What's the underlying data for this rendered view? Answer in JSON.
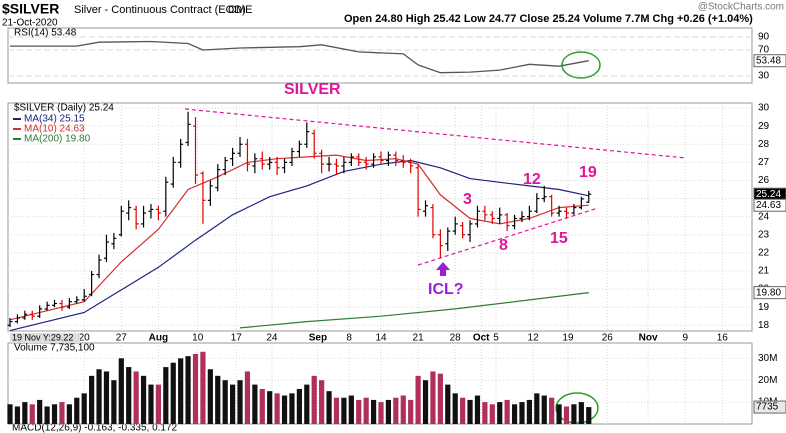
{
  "header": {
    "symbol": "$SILVER",
    "name": "Silver - Continuous Contract (EOD)",
    "exchange": "CME",
    "date": "21-Oct-2020",
    "quote": "Open 24.80  High 25.42  Low 24.77  Close 25.24  Volume 7.7M  Chg +0.26 (+1.04%)",
    "brand": "@StockCharts.com",
    "cursor": "19 Nov Y:29.22",
    "macd": "MACD(12,26,9) -0.163, -0.335, 0.172"
  },
  "chart_data": [
    {
      "type": "line",
      "title": "RSI(14) 53.48",
      "color": "#555555",
      "x": [
        0,
        9,
        12,
        19,
        24,
        26,
        31,
        39,
        42,
        47,
        53,
        55,
        58,
        62,
        66,
        70,
        74,
        78
      ],
      "values": [
        76,
        76,
        82,
        83,
        80,
        70,
        73,
        75,
        78,
        67,
        64,
        47,
        35,
        36,
        39,
        48,
        45,
        53.48
      ],
      "xlim": [
        0,
        100
      ],
      "ylim": [
        19.2,
        103.8
      ],
      "yticks": [
        30,
        70,
        90
      ],
      "value_tag": {
        "value": 53.48,
        "label": "53.48"
      }
    },
    {
      "type": "ohlc",
      "title": "$SILVER (Daily) 25.24",
      "up_color": "#000000",
      "down_color": "#e00000",
      "x": [
        0,
        1,
        2,
        3,
        4,
        5,
        6,
        7,
        8,
        9,
        10,
        11,
        12,
        13,
        14,
        15,
        16,
        17,
        18,
        19,
        20,
        21,
        22,
        23,
        24,
        25,
        26,
        27,
        28,
        29,
        30,
        31,
        32,
        33,
        34,
        35,
        36,
        37,
        38,
        39,
        40,
        41,
        42,
        43,
        44,
        45,
        46,
        47,
        48,
        49,
        50,
        51,
        52,
        53,
        54,
        55,
        56,
        57,
        58,
        59,
        60,
        61,
        62,
        63,
        64,
        65,
        66,
        67,
        68,
        69,
        70,
        71,
        72,
        73,
        74,
        75,
        76,
        77,
        78
      ],
      "open": [
        18.0,
        18.2,
        18.4,
        18.6,
        18.5,
        18.9,
        19.1,
        19.2,
        19.0,
        19.3,
        19.4,
        19.7,
        20.8,
        21.7,
        22.5,
        23.0,
        24.2,
        24.4,
        23.6,
        24.3,
        24.4,
        24.3,
        25.8,
        27.0,
        28.1,
        29.0,
        26.4,
        24.9,
        25.6,
        26.6,
        27.2,
        27.5,
        28.0,
        26.8,
        27.2,
        26.9,
        27.0,
        26.7,
        27.0,
        27.6,
        28.0,
        28.6,
        27.5,
        26.9,
        26.9,
        26.8,
        27.0,
        27.3,
        27.0,
        26.9,
        27.3,
        27.1,
        27.4,
        27.1,
        27.0,
        26.7,
        24.3,
        24.5,
        23.0,
        22.5,
        23.2,
        23.5,
        23.0,
        23.6,
        24.3,
        24.1,
        23.9,
        24.1,
        23.5,
        23.9,
        24.0,
        24.3,
        25.0,
        25.1,
        24.2,
        24.3,
        24.2,
        24.5,
        24.8
      ],
      "high": [
        18.4,
        18.6,
        18.8,
        18.8,
        19.1,
        19.3,
        19.4,
        19.4,
        19.5,
        19.6,
        20.0,
        21.0,
        21.9,
        23.0,
        23.1,
        24.6,
        24.9,
        24.6,
        24.6,
        24.7,
        24.6,
        26.2,
        27.3,
        28.3,
        29.8,
        29.5,
        26.5,
        26.0,
        26.9,
        27.3,
        27.8,
        28.4,
        28.3,
        27.5,
        27.6,
        27.3,
        27.3,
        27.2,
        27.8,
        28.2,
        29.2,
        28.8,
        27.7,
        27.3,
        27.2,
        27.3,
        27.5,
        27.5,
        27.3,
        27.5,
        27.6,
        27.6,
        27.6,
        27.4,
        27.2,
        26.9,
        24.9,
        24.7,
        23.3,
        23.4,
        24.0,
        23.7,
        23.8,
        24.6,
        24.6,
        24.3,
        24.5,
        24.2,
        24.1,
        24.3,
        24.6,
        25.3,
        25.7,
        25.2,
        24.6,
        24.5,
        24.7,
        25.1,
        25.42
      ],
      "low": [
        17.9,
        18.1,
        18.3,
        18.3,
        18.4,
        18.8,
        19.0,
        18.8,
        18.9,
        19.2,
        19.3,
        19.6,
        20.6,
        21.5,
        22.2,
        22.9,
        23.8,
        23.3,
        23.4,
        23.9,
        23.8,
        24.0,
        25.6,
        26.7,
        27.9,
        25.8,
        23.6,
        24.6,
        25.4,
        26.3,
        26.8,
        27.3,
        26.5,
        26.4,
        26.6,
        26.6,
        26.3,
        26.4,
        26.8,
        27.3,
        27.8,
        27.2,
        26.4,
        26.5,
        26.3,
        26.4,
        26.8,
        26.8,
        26.6,
        26.7,
        26.9,
        26.8,
        26.8,
        26.7,
        26.4,
        24.0,
        24.0,
        22.8,
        21.7,
        22.1,
        23.0,
        22.8,
        22.6,
        23.4,
        23.8,
        23.6,
        23.6,
        23.2,
        23.3,
        23.7,
        23.8,
        24.2,
        24.8,
        24.0,
        24.0,
        23.9,
        24.1,
        24.4,
        24.77
      ],
      "close": [
        18.2,
        18.4,
        18.6,
        18.5,
        18.9,
        19.1,
        19.2,
        19.0,
        19.3,
        19.4,
        19.6,
        20.8,
        21.6,
        22.6,
        22.8,
        24.3,
        24.5,
        23.6,
        24.2,
        24.4,
        24.2,
        25.9,
        27.0,
        28.0,
        29.1,
        26.3,
        24.9,
        25.7,
        26.6,
        27.1,
        27.5,
        28.0,
        26.9,
        27.2,
        26.9,
        27.0,
        26.7,
        27.0,
        27.6,
        28.0,
        28.7,
        27.5,
        26.9,
        26.9,
        26.8,
        27.0,
        27.3,
        27.0,
        26.9,
        27.3,
        27.1,
        27.4,
        27.1,
        27.0,
        26.8,
        24.4,
        24.6,
        23.0,
        22.4,
        23.2,
        23.6,
        23.0,
        23.6,
        24.3,
        24.1,
        23.9,
        24.1,
        23.5,
        23.9,
        24.0,
        24.3,
        25.0,
        25.1,
        24.2,
        24.3,
        24.2,
        24.5,
        24.98,
        25.24
      ],
      "overlays": [
        {
          "name": "MA(34) 25.15",
          "color": "#1a237e",
          "x": [
            0,
            10,
            20,
            25,
            30,
            35,
            40,
            45,
            50,
            54,
            58,
            62,
            66,
            70,
            74,
            78
          ],
          "values": [
            17.7,
            18.7,
            21.2,
            22.7,
            24.1,
            25.1,
            25.7,
            26.5,
            26.9,
            27.1,
            26.7,
            26.1,
            25.9,
            25.7,
            25.5,
            25.15
          ]
        },
        {
          "name": "MA(10) 24.63",
          "color": "#d32f2f",
          "x": [
            0,
            5,
            10,
            15,
            20,
            24,
            28,
            32,
            36,
            40,
            44,
            48,
            52,
            55,
            58,
            62,
            66,
            70,
            74,
            78
          ],
          "values": [
            18.3,
            18.8,
            19.3,
            21.5,
            23.3,
            25.5,
            26.2,
            27.0,
            27.2,
            27.3,
            27.4,
            27.1,
            27.2,
            26.9,
            25.2,
            23.9,
            23.6,
            23.9,
            24.5,
            24.63
          ]
        },
        {
          "name": "MA(200) 19.80",
          "color": "#2e7d32",
          "x": [
            31,
            40,
            50,
            60,
            70,
            78
          ],
          "values": [
            17.85,
            18.2,
            18.5,
            18.9,
            19.4,
            19.8
          ]
        }
      ],
      "xlim": [
        0,
        100
      ],
      "ylim": [
        17.68,
        30.28
      ],
      "yticks": [
        18,
        19,
        20,
        21,
        22,
        23,
        24,
        25,
        26,
        27,
        28,
        29,
        30
      ],
      "xticks": [
        {
          "value": 10,
          "label": "20"
        },
        {
          "value": 15,
          "label": "27"
        },
        {
          "value": 20,
          "label": "Aug"
        },
        {
          "value": 25.3,
          "label": "10"
        },
        {
          "value": 30.5,
          "label": "17"
        },
        {
          "value": 35.3,
          "label": "24"
        },
        {
          "value": 41.5,
          "label": "Sep"
        },
        {
          "value": 45.7,
          "label": "8"
        },
        {
          "value": 50,
          "label": "14"
        },
        {
          "value": 55,
          "label": "21"
        },
        {
          "value": 60,
          "label": "28"
        },
        {
          "value": 63.5,
          "label": "Oct"
        },
        {
          "value": 65.5,
          "label": "5"
        },
        {
          "value": 70.5,
          "label": "12"
        },
        {
          "value": 75.2,
          "label": "19"
        },
        {
          "value": 80.5,
          "label": "26"
        },
        {
          "value": 86,
          "label": "Nov"
        },
        {
          "value": 91,
          "label": "9"
        },
        {
          "value": 96,
          "label": "16"
        }
      ],
      "price_tags": [
        {
          "value": 25.24,
          "label": "25.24"
        },
        {
          "value": 24.63,
          "label": "24.63"
        },
        {
          "value": 19.8,
          "label": "19.80"
        }
      ],
      "annotations": {
        "title": "SILVER",
        "labels": [
          "3",
          "12",
          "19",
          "8",
          "15",
          "ICL?"
        ]
      }
    },
    {
      "type": "bar",
      "title": "Volume 7,735,100",
      "up_color": "#111111",
      "down_color": "#b0305a",
      "x": [
        0,
        1,
        2,
        3,
        4,
        5,
        6,
        7,
        8,
        9,
        10,
        11,
        12,
        13,
        14,
        15,
        16,
        17,
        18,
        19,
        20,
        21,
        22,
        23,
        24,
        25,
        26,
        27,
        28,
        29,
        30,
        31,
        32,
        33,
        34,
        35,
        36,
        37,
        38,
        39,
        40,
        41,
        42,
        43,
        44,
        45,
        46,
        47,
        48,
        49,
        50,
        51,
        52,
        53,
        54,
        55,
        56,
        57,
        58,
        59,
        60,
        61,
        62,
        63,
        64,
        65,
        66,
        67,
        68,
        69,
        70,
        71,
        72,
        73,
        74,
        75,
        76,
        77,
        78
      ],
      "values": [
        9000000,
        8000000,
        10000000,
        9000000,
        11000000,
        8000000,
        9000000,
        10000000,
        9000000,
        12000000,
        14000000,
        22000000,
        25000000,
        24000000,
        20000000,
        30000000,
        26000000,
        24000000,
        22000000,
        18000000,
        18000000,
        26000000,
        28000000,
        30000000,
        31000000,
        32000000,
        33000000,
        25000000,
        22000000,
        20000000,
        18000000,
        20000000,
        24000000,
        18000000,
        16000000,
        15000000,
        14000000,
        13000000,
        14000000,
        16000000,
        18000000,
        22000000,
        20000000,
        15000000,
        12000000,
        12000000,
        13000000,
        11000000,
        12000000,
        11000000,
        10000000,
        11000000,
        12000000,
        13000000,
        11000000,
        22000000,
        20000000,
        24000000,
        23000000,
        18000000,
        14000000,
        12000000,
        11000000,
        13000000,
        10000000,
        9000000,
        10000000,
        11000000,
        9000000,
        10000000,
        11000000,
        14000000,
        13000000,
        12000000,
        9000000,
        8000000,
        9000000,
        10000000,
        7735100
      ],
      "xlim": [
        0,
        100
      ],
      "ylim": [
        0,
        37000000
      ],
      "yticks": [
        {
          "value": 10000000,
          "label": "10M"
        },
        {
          "value": 20000000,
          "label": "20M"
        },
        {
          "value": 30000000,
          "label": "30M"
        }
      ],
      "value_tag": {
        "value": 7735100,
        "label": "7735"
      }
    }
  ]
}
